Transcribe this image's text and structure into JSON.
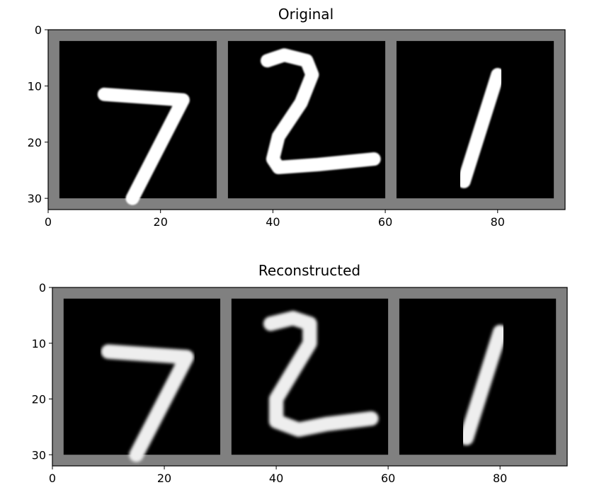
{
  "chart_data": [
    {
      "type": "image",
      "title": "Original",
      "xlim": [
        0,
        92
      ],
      "ylim": [
        32,
        0
      ],
      "xticks": [
        0,
        20,
        40,
        60,
        80
      ],
      "yticks": [
        0,
        10,
        20,
        30
      ],
      "grid": false,
      "panels": [
        {
          "digit": "7",
          "strokes": [
            [
              [
                8,
                9.5
              ],
              [
                22,
                10.5
              ],
              [
                13,
                28
              ]
            ]
          ]
        },
        {
          "digit": "2",
          "strokes": [
            [
              [
                7,
                3.5
              ],
              [
                10,
                2.5
              ],
              [
                14,
                3.5
              ],
              [
                15,
                6
              ],
              [
                13,
                11
              ],
              [
                9,
                17
              ],
              [
                8,
                21
              ],
              [
                9,
                22.5
              ],
              [
                16,
                22
              ],
              [
                26,
                21
              ]
            ]
          ]
        },
        {
          "digit": "1",
          "strokes": [
            [
              [
                18,
                6
              ],
              [
                12,
                25
              ]
            ]
          ]
        }
      ]
    },
    {
      "type": "image",
      "title": "Reconstructed",
      "xlim": [
        0,
        92
      ],
      "ylim": [
        32,
        0
      ],
      "xticks": [
        0,
        20,
        40,
        60,
        80
      ],
      "yticks": [
        0,
        10,
        20,
        30
      ],
      "grid": false,
      "panels": [
        {
          "digit": "7",
          "strokes": [
            [
              [
                8,
                9.5
              ],
              [
                22,
                10.5
              ],
              [
                13,
                28
              ]
            ]
          ]
        },
        {
          "digit": "2",
          "strokes": [
            [
              [
                7,
                4.5
              ],
              [
                11,
                3.5
              ],
              [
                14,
                4.5
              ],
              [
                14,
                8
              ],
              [
                11,
                13
              ],
              [
                8,
                18
              ],
              [
                8,
                22
              ],
              [
                12,
                23.5
              ],
              [
                17,
                22.5
              ],
              [
                25,
                21.5
              ]
            ]
          ]
        },
        {
          "digit": "1",
          "strokes": [
            [
              [
                18,
                6
              ],
              [
                12,
                25
              ]
            ]
          ]
        }
      ]
    }
  ]
}
